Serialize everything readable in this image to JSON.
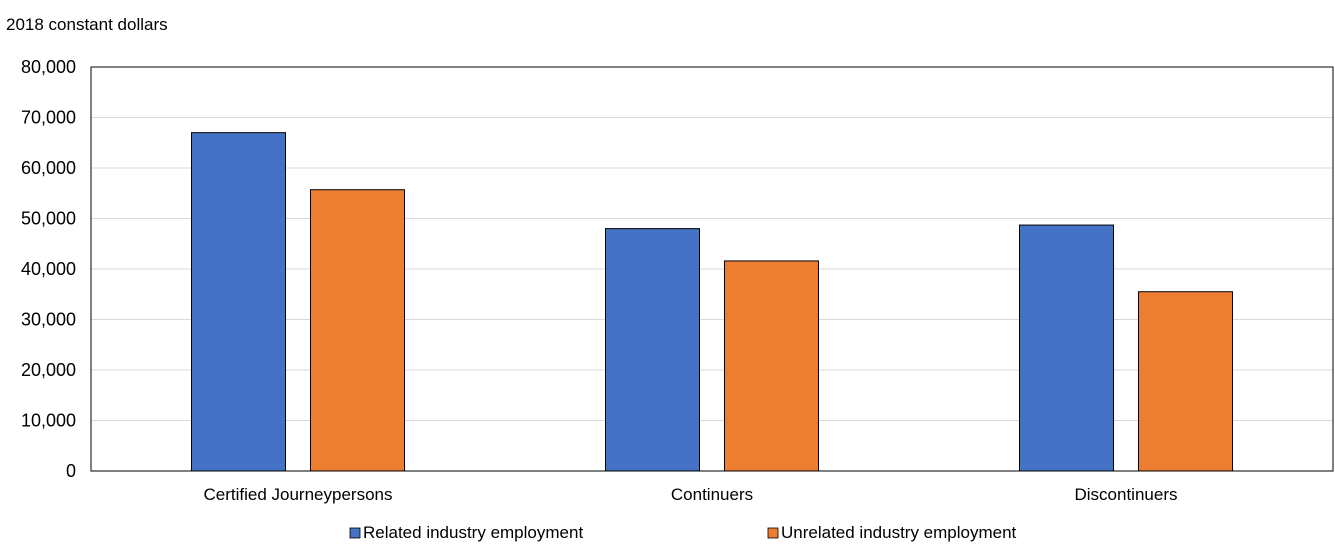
{
  "chart_data": {
    "type": "bar",
    "unit_label": "2018 constant dollars",
    "categories": [
      "Certified Journeypersons",
      "Continuers",
      "Discontinuers"
    ],
    "series": [
      {
        "name": "Related industry employment",
        "color": "#4472C4",
        "values": [
          67000,
          48000,
          48700
        ]
      },
      {
        "name": "Unrelated industry employment",
        "color": "#ED7D31",
        "values": [
          55700,
          41600,
          35500
        ]
      }
    ],
    "y_ticks": [
      "0",
      "10,000",
      "20,000",
      "30,000",
      "40,000",
      "50,000",
      "60,000",
      "70,000",
      "80,000"
    ],
    "ylim": [
      0,
      80000
    ],
    "y_step": 10000,
    "grid": true,
    "legend_position": "bottom"
  }
}
